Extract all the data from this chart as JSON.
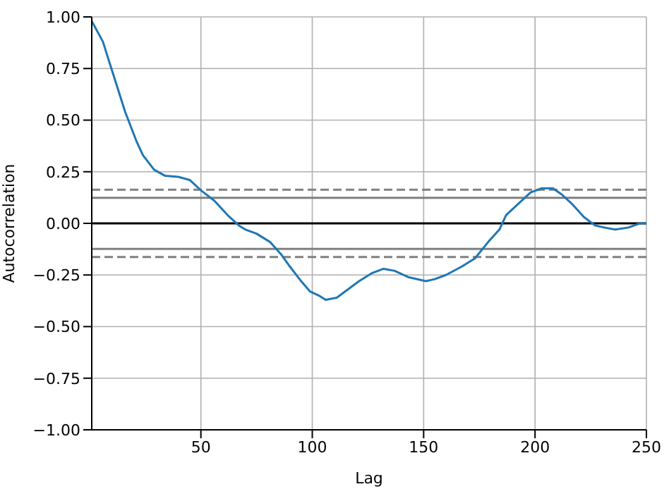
{
  "chart_data": {
    "type": "line",
    "xlabel": "Lag",
    "ylabel": "Autocorrelation",
    "x": [
      1,
      6,
      11,
      16,
      21,
      24,
      29,
      34,
      40,
      45,
      50,
      56,
      62,
      67,
      70,
      75,
      81,
      86,
      90,
      95,
      99,
      103,
      106,
      111,
      116,
      121,
      127,
      132,
      137,
      143,
      151,
      155,
      160,
      167,
      173,
      179,
      184,
      187,
      192,
      198,
      203,
      208,
      212,
      217,
      222,
      227,
      231,
      236,
      242,
      247,
      250
    ],
    "series": [
      {
        "color": "#1f77b4",
        "values": [
          0.98,
          0.88,
          0.71,
          0.54,
          0.4,
          0.33,
          0.26,
          0.23,
          0.225,
          0.21,
          0.16,
          0.11,
          0.04,
          -0.01,
          -0.03,
          -0.05,
          -0.09,
          -0.15,
          -0.21,
          -0.28,
          -0.33,
          -0.35,
          -0.37,
          -0.36,
          -0.32,
          -0.28,
          -0.24,
          -0.22,
          -0.23,
          -0.26,
          -0.28,
          -0.27,
          -0.25,
          -0.21,
          -0.17,
          -0.09,
          -0.03,
          0.04,
          0.09,
          0.15,
          0.17,
          0.17,
          0.14,
          0.09,
          0.03,
          -0.01,
          -0.02,
          -0.03,
          -0.02,
          0.0,
          0.0
        ]
      }
    ],
    "xlim": [
      1,
      250
    ],
    "xticks": [
      50,
      100,
      150,
      200,
      250
    ],
    "ylim": [
      -1,
      1
    ],
    "yticks": [
      {
        "value": -1,
        "label": "−1.00"
      },
      {
        "value": -0.75,
        "label": "−0.75"
      },
      {
        "value": -0.5,
        "label": "−0.50"
      },
      {
        "value": -0.25,
        "label": "−0.25"
      },
      {
        "value": 0,
        "label": "0.00"
      },
      {
        "value": 0.25,
        "label": "0.25"
      },
      {
        "value": 0.5,
        "label": "0.50"
      },
      {
        "value": 0.75,
        "label": "0.75"
      },
      {
        "value": 1,
        "label": "1.00"
      }
    ],
    "ref_lines": [
      {
        "axis": "y",
        "value": 0,
        "color": "#000000",
        "line_style": "solid"
      },
      {
        "axis": "y",
        "value": 0.124,
        "color": "#808080",
        "line_style": "solid"
      },
      {
        "axis": "y",
        "value": -0.124,
        "color": "#808080",
        "line_style": "solid"
      },
      {
        "axis": "y",
        "value": 0.163,
        "color": "#808080",
        "line_style": "dashed"
      },
      {
        "axis": "y",
        "value": -0.163,
        "color": "#808080",
        "line_style": "dashed"
      }
    ],
    "grid": true,
    "legend": false,
    "marker": "none",
    "line_style": "solid"
  }
}
